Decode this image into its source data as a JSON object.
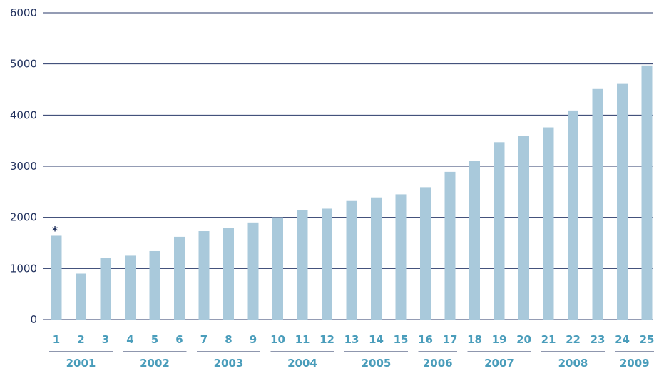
{
  "chart_data": {
    "type": "bar",
    "title": "",
    "xlabel": "",
    "ylabel": "",
    "ylim": [
      0,
      6000
    ],
    "yticks": [
      0,
      1000,
      2000,
      3000,
      4000,
      5000,
      6000
    ],
    "grid": true,
    "legend": "none",
    "categories": [
      "1",
      "2",
      "3",
      "4",
      "5",
      "6",
      "7",
      "8",
      "9",
      "10",
      "11",
      "12",
      "13",
      "14",
      "15",
      "16",
      "17",
      "18",
      "19",
      "20",
      "21",
      "22",
      "23",
      "24",
      "25"
    ],
    "values": [
      1640,
      900,
      1210,
      1250,
      1340,
      1620,
      1730,
      1800,
      1900,
      2000,
      2140,
      2170,
      2320,
      2390,
      2450,
      2590,
      2890,
      3100,
      3470,
      3590,
      3760,
      4090,
      4510,
      4610,
      4970
    ],
    "groups": [
      {
        "label": "2001",
        "start": 0,
        "end": 2
      },
      {
        "label": "2002",
        "start": 3,
        "end": 5
      },
      {
        "label": "2003",
        "start": 6,
        "end": 8
      },
      {
        "label": "2004",
        "start": 9,
        "end": 11
      },
      {
        "label": "2005",
        "start": 12,
        "end": 14
      },
      {
        "label": "2006",
        "start": 15,
        "end": 16
      },
      {
        "label": "2007",
        "start": 17,
        "end": 19
      },
      {
        "label": "2008",
        "start": 20,
        "end": 22
      },
      {
        "label": "2009",
        "start": 23,
        "end": 24
      }
    ],
    "annotations": [
      {
        "index": 0,
        "text": "*"
      }
    ],
    "colors": {
      "bar": "#a9c9db",
      "label": "#4a9dbb",
      "axis": "#1f2f5c"
    }
  }
}
